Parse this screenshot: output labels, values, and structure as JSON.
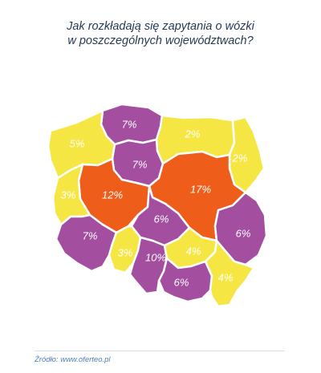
{
  "title": {
    "line1": "Jak rozkładają się zapytania o wózki",
    "line2": "w poszczególnych województwach?"
  },
  "source": "Źródło: www.oferteo.pl",
  "colors": {
    "yellow": "#f5e644",
    "purple": "#a34e9f",
    "orange": "#ee5e1a",
    "text": "#263a55",
    "source": "#4d7fb5"
  },
  "regions": [
    {
      "id": "pomorskie",
      "share": "7%",
      "color": "purple"
    },
    {
      "id": "warminsko-mazurskie",
      "share": "2%",
      "color": "yellow"
    },
    {
      "id": "podlaskie",
      "share": "2%",
      "color": "yellow"
    },
    {
      "id": "zachodniopomorskie",
      "share": "5%",
      "color": "yellow"
    },
    {
      "id": "kujawsko-pomorskie",
      "share": "7%",
      "color": "purple"
    },
    {
      "id": "wielkopolskie",
      "share": "12%",
      "color": "orange"
    },
    {
      "id": "mazowieckie",
      "share": "17%",
      "color": "orange"
    },
    {
      "id": "lubuskie",
      "share": "3%",
      "color": "yellow"
    },
    {
      "id": "lodzkie",
      "share": "6%",
      "color": "purple"
    },
    {
      "id": "lubelskie",
      "share": "6%",
      "color": "purple"
    },
    {
      "id": "dolnoslaskie",
      "share": "7%",
      "color": "purple"
    },
    {
      "id": "opolskie",
      "share": "3%",
      "color": "yellow"
    },
    {
      "id": "slaskie",
      "share": "10%",
      "color": "purple"
    },
    {
      "id": "swietokrzyskie",
      "share": "4%",
      "color": "yellow"
    },
    {
      "id": "malopolskie",
      "share": "6%",
      "color": "purple"
    },
    {
      "id": "podkarpackie",
      "share": "4%",
      "color": "yellow"
    }
  ]
}
